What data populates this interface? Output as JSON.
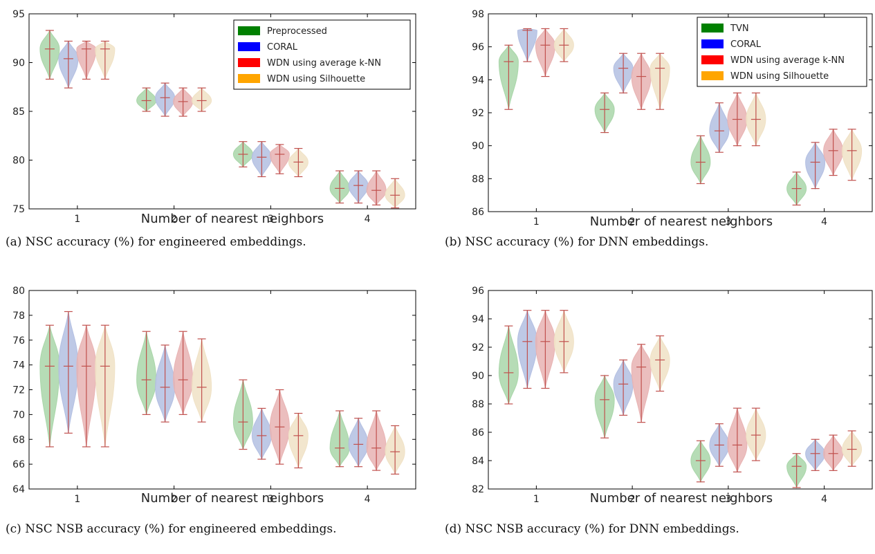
{
  "colors": {
    "fill": [
      "#008000",
      "#0000ff",
      "#ff0000",
      "#ffa500"
    ],
    "violin_fill": [
      "#a9d6a9",
      "#b3bfe2",
      "#e8b3b3",
      "#f0e2c6"
    ],
    "whisker": "#c0504d",
    "axes": "#000000"
  },
  "chart_data": [
    {
      "type": "violin",
      "caption": "(a) NSC accuracy (%) for engineered embeddings.",
      "xlabel": "Number of nearest neighbors",
      "ylabel": "",
      "categories": [
        "1",
        "2",
        "3",
        "4"
      ],
      "ylim": [
        75,
        95
      ],
      "yticks": [
        75,
        80,
        85,
        90,
        95
      ],
      "legend": {
        "position": "top-right",
        "labels": [
          "Preprocessed",
          "CORAL",
          "WDN using average k-NN",
          "WDN using Silhouette"
        ]
      },
      "series": [
        {
          "name": "Preprocessed",
          "stats": [
            {
              "min": 88.3,
              "median": 91.4,
              "max": 93.3
            },
            {
              "min": 85.0,
              "median": 86.1,
              "max": 87.4
            },
            {
              "min": 79.3,
              "median": 80.6,
              "max": 81.9
            },
            {
              "min": 75.6,
              "median": 77.1,
              "max": 78.9
            }
          ]
        },
        {
          "name": "CORAL",
          "stats": [
            {
              "min": 87.4,
              "median": 90.4,
              "max": 92.2
            },
            {
              "min": 84.5,
              "median": 86.4,
              "max": 87.9
            },
            {
              "min": 78.3,
              "median": 80.3,
              "max": 81.9
            },
            {
              "min": 75.6,
              "median": 77.4,
              "max": 78.9
            }
          ]
        },
        {
          "name": "WDN using average k-NN",
          "stats": [
            {
              "min": 88.3,
              "median": 91.4,
              "max": 92.2
            },
            {
              "min": 84.5,
              "median": 86.0,
              "max": 87.4
            },
            {
              "min": 78.6,
              "median": 80.6,
              "max": 81.6
            },
            {
              "min": 75.4,
              "median": 76.9,
              "max": 78.9
            }
          ]
        },
        {
          "name": "WDN using Silhouette",
          "stats": [
            {
              "min": 88.3,
              "median": 91.4,
              "max": 92.2
            },
            {
              "min": 85.0,
              "median": 86.1,
              "max": 87.4
            },
            {
              "min": 78.3,
              "median": 79.8,
              "max": 81.2
            },
            {
              "min": 75.1,
              "median": 76.4,
              "max": 78.1
            }
          ]
        }
      ]
    },
    {
      "type": "violin",
      "caption": "(b) NSC accuracy (%) for DNN embeddings.",
      "xlabel": "Number of nearest neighbors",
      "ylabel": "",
      "categories": [
        "1",
        "2",
        "3",
        "4"
      ],
      "ylim": [
        86,
        98
      ],
      "yticks": [
        86,
        88,
        90,
        92,
        94,
        96,
        98
      ],
      "legend": {
        "position": "top-right",
        "labels": [
          "TVN",
          "CORAL",
          "WDN using average k-NN",
          "WDN using Silhouette"
        ]
      },
      "series": [
        {
          "name": "TVN",
          "stats": [
            {
              "min": 92.2,
              "median": 95.1,
              "max": 96.1
            },
            {
              "min": 90.8,
              "median": 92.2,
              "max": 93.2
            },
            {
              "min": 87.7,
              "median": 89.0,
              "max": 90.6
            },
            {
              "min": 86.4,
              "median": 87.4,
              "max": 88.4
            }
          ]
        },
        {
          "name": "CORAL",
          "stats": [
            {
              "min": 95.1,
              "median": 97.0,
              "max": 97.1
            },
            {
              "min": 93.2,
              "median": 94.7,
              "max": 95.6
            },
            {
              "min": 89.6,
              "median": 90.9,
              "max": 92.6
            },
            {
              "min": 87.4,
              "median": 89.0,
              "max": 90.2
            }
          ]
        },
        {
          "name": "WDN using average k-NN",
          "stats": [
            {
              "min": 94.2,
              "median": 96.1,
              "max": 97.1
            },
            {
              "min": 92.2,
              "median": 94.2,
              "max": 95.6
            },
            {
              "min": 90.0,
              "median": 91.6,
              "max": 93.2
            },
            {
              "min": 88.2,
              "median": 89.7,
              "max": 91.0
            }
          ]
        },
        {
          "name": "WDN using Silhouette",
          "stats": [
            {
              "min": 95.1,
              "median": 96.1,
              "max": 97.1
            },
            {
              "min": 92.2,
              "median": 94.7,
              "max": 95.6
            },
            {
              "min": 90.0,
              "median": 91.6,
              "max": 93.2
            },
            {
              "min": 87.9,
              "median": 89.7,
              "max": 91.0
            }
          ]
        }
      ]
    },
    {
      "type": "violin",
      "caption": "(c) NSC NSB accuracy (%) for engineered embeddings.",
      "xlabel": "Number of nearest neighbors",
      "ylabel": "",
      "categories": [
        "1",
        "2",
        "3",
        "4"
      ],
      "ylim": [
        64,
        80
      ],
      "yticks": [
        64,
        66,
        68,
        70,
        72,
        74,
        76,
        78,
        80
      ],
      "legend": null,
      "series": [
        {
          "name": "Preprocessed",
          "stats": [
            {
              "min": 67.4,
              "median": 73.9,
              "max": 77.2
            },
            {
              "min": 70.0,
              "median": 72.8,
              "max": 76.7
            },
            {
              "min": 67.2,
              "median": 69.4,
              "max": 72.8
            },
            {
              "min": 65.8,
              "median": 67.3,
              "max": 70.3
            }
          ]
        },
        {
          "name": "CORAL",
          "stats": [
            {
              "min": 68.5,
              "median": 73.9,
              "max": 78.3
            },
            {
              "min": 69.4,
              "median": 72.2,
              "max": 75.6
            },
            {
              "min": 66.4,
              "median": 68.3,
              "max": 70.5
            },
            {
              "min": 65.8,
              "median": 67.6,
              "max": 69.7
            }
          ]
        },
        {
          "name": "WDN using average k-NN",
          "stats": [
            {
              "min": 67.4,
              "median": 73.9,
              "max": 77.2
            },
            {
              "min": 70.0,
              "median": 72.8,
              "max": 76.7
            },
            {
              "min": 66.0,
              "median": 69.0,
              "max": 72.0
            },
            {
              "min": 65.5,
              "median": 67.3,
              "max": 70.3
            }
          ]
        },
        {
          "name": "WDN using Silhouette",
          "stats": [
            {
              "min": 67.4,
              "median": 73.9,
              "max": 77.2
            },
            {
              "min": 69.4,
              "median": 72.2,
              "max": 76.1
            },
            {
              "min": 65.7,
              "median": 68.3,
              "max": 70.1
            },
            {
              "min": 65.2,
              "median": 67.0,
              "max": 69.1
            }
          ]
        }
      ]
    },
    {
      "type": "violin",
      "caption": "(d) NSC NSB accuracy (%) for DNN embeddings.",
      "xlabel": "Number of nearest neighbors",
      "ylabel": "",
      "categories": [
        "1",
        "2",
        "3",
        "4"
      ],
      "ylim": [
        82,
        96
      ],
      "yticks": [
        82,
        84,
        86,
        88,
        90,
        92,
        94,
        96
      ],
      "legend": null,
      "series": [
        {
          "name": "TVN",
          "stats": [
            {
              "min": 88.0,
              "median": 90.2,
              "max": 93.5
            },
            {
              "min": 85.6,
              "median": 88.3,
              "max": 90.0
            },
            {
              "min": 82.5,
              "median": 84.0,
              "max": 85.4
            },
            {
              "min": 82.1,
              "median": 83.6,
              "max": 84.5
            }
          ]
        },
        {
          "name": "CORAL",
          "stats": [
            {
              "min": 89.1,
              "median": 92.4,
              "max": 94.6
            },
            {
              "min": 87.2,
              "median": 89.4,
              "max": 91.1
            },
            {
              "min": 83.6,
              "median": 85.1,
              "max": 86.6
            },
            {
              "min": 83.3,
              "median": 84.5,
              "max": 85.5
            }
          ]
        },
        {
          "name": "WDN using average k-NN",
          "stats": [
            {
              "min": 89.1,
              "median": 92.4,
              "max": 94.6
            },
            {
              "min": 86.7,
              "median": 90.6,
              "max": 92.2
            },
            {
              "min": 83.2,
              "median": 85.1,
              "max": 87.7
            },
            {
              "min": 83.3,
              "median": 84.5,
              "max": 85.8
            }
          ]
        },
        {
          "name": "WDN using Silhouette",
          "stats": [
            {
              "min": 90.2,
              "median": 92.4,
              "max": 94.6
            },
            {
              "min": 88.9,
              "median": 91.1,
              "max": 92.8
            },
            {
              "min": 84.0,
              "median": 85.8,
              "max": 87.7
            },
            {
              "min": 83.6,
              "median": 84.8,
              "max": 86.1
            }
          ]
        }
      ]
    }
  ]
}
